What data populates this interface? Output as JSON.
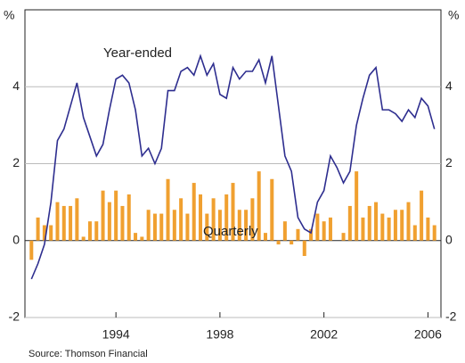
{
  "chart_data": {
    "type": "line_bar",
    "y_unit_label": "%",
    "source": "Source: Thomson Financial",
    "annotations": [
      {
        "text": "Year-ended",
        "series": 0
      },
      {
        "text": "Quarterly",
        "series": 1
      }
    ],
    "x": [
      1990.75,
      1991,
      1991.25,
      1991.5,
      1991.75,
      1992,
      1992.25,
      1992.5,
      1992.75,
      1993,
      1993.25,
      1993.5,
      1993.75,
      1994,
      1994.25,
      1994.5,
      1994.75,
      1995,
      1995.25,
      1995.5,
      1995.75,
      1996,
      1996.25,
      1996.5,
      1996.75,
      1997,
      1997.25,
      1997.5,
      1997.75,
      1998,
      1998.25,
      1998.5,
      1998.75,
      1999,
      1999.25,
      1999.5,
      1999.75,
      2000,
      2000.25,
      2000.5,
      2000.75,
      2001,
      2001.25,
      2001.5,
      2001.75,
      2002,
      2002.25,
      2002.5,
      2002.75,
      2003,
      2003.25,
      2003.5,
      2003.75,
      2004,
      2004.25,
      2004.5,
      2004.75,
      2005,
      2005.25,
      2005.5,
      2005.75,
      2006,
      2006.25
    ],
    "series": [
      {
        "name": "Year-ended",
        "kind": "line",
        "color": "#2e2e8f",
        "values": [
          -1.0,
          -0.6,
          -0.1,
          1.0,
          2.6,
          2.9,
          3.5,
          4.1,
          3.2,
          2.7,
          2.2,
          2.5,
          3.4,
          4.2,
          4.3,
          4.1,
          3.4,
          2.2,
          2.4,
          2.0,
          2.4,
          3.9,
          3.9,
          4.4,
          4.5,
          4.3,
          4.8,
          4.3,
          4.6,
          3.8,
          3.7,
          4.5,
          4.2,
          4.4,
          4.4,
          4.7,
          4.1,
          4.8,
          3.5,
          2.2,
          1.8,
          0.6,
          0.3,
          0.2,
          1.0,
          1.3,
          2.2,
          1.9,
          1.5,
          1.8,
          3.0,
          3.7,
          4.3,
          4.5,
          3.4,
          3.4,
          3.3,
          3.1,
          3.4,
          3.2,
          3.7,
          3.5,
          2.9
        ]
      },
      {
        "name": "Quarterly",
        "kind": "bar",
        "color": "#f0a030",
        "values": [
          -0.5,
          0.6,
          0.4,
          0.4,
          1.0,
          0.9,
          0.9,
          1.1,
          0.1,
          0.5,
          0.5,
          1.3,
          1.0,
          1.3,
          0.9,
          1.2,
          0.2,
          0.1,
          0.8,
          0.7,
          0.7,
          1.6,
          0.8,
          1.1,
          0.7,
          1.5,
          1.2,
          0.7,
          1.1,
          0.8,
          1.2,
          1.5,
          0.8,
          0.8,
          1.1,
          1.8,
          0.2,
          1.6,
          -0.1,
          0.5,
          -0.1,
          0.3,
          -0.4,
          0.3,
          0.7,
          0.5,
          0.6,
          0.0,
          0.2,
          0.9,
          1.8,
          0.6,
          0.9,
          1.0,
          0.7,
          0.6,
          0.8,
          0.8,
          1.0,
          0.4,
          1.3,
          0.6,
          0.4
        ]
      }
    ],
    "xlim": [
      1990.5,
      2006.5
    ],
    "xticks": [
      1994,
      1998,
      2002,
      2006
    ],
    "ylim": [
      -2,
      6
    ],
    "yticks": [
      -2,
      0,
      2,
      4
    ],
    "grid": true
  }
}
